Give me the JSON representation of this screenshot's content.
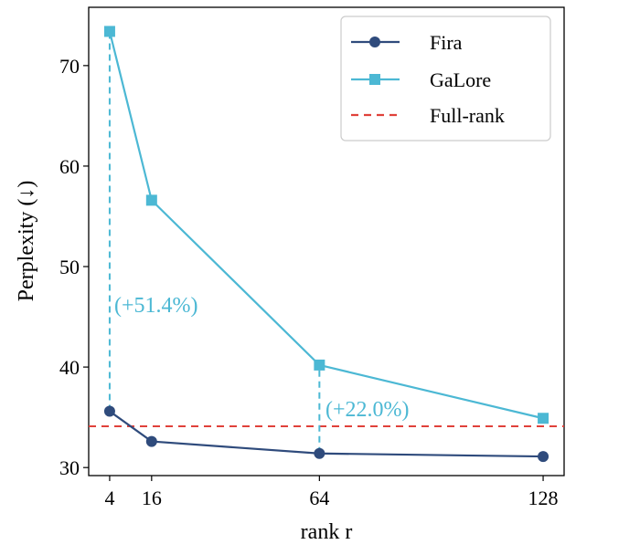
{
  "chart_data": {
    "type": "line",
    "x": [
      4,
      16,
      64,
      128
    ],
    "xticks": [
      "4",
      "16",
      "64",
      "128"
    ],
    "ylim": [
      29.2,
      75.8
    ],
    "xlim": [
      -2,
      134
    ],
    "yticks": [
      30,
      40,
      50,
      60,
      70
    ],
    "xlabel": "rank r",
    "ylabel": "Perplexity (↓)",
    "series": [
      {
        "name": "Fira",
        "values": [
          35.6,
          32.6,
          31.4,
          31.1
        ],
        "color": "#2f4b7c",
        "marker": "circle"
      },
      {
        "name": "GaLore",
        "values": [
          73.4,
          56.6,
          40.2,
          34.9
        ],
        "color": "#4cb8d4",
        "marker": "square"
      }
    ],
    "reference_line": {
      "name": "Full-rank",
      "value": 34.1,
      "color": "#e0413a",
      "style": "dashed"
    },
    "annotations": [
      {
        "text": "(+51.4%)",
        "x": 4,
        "from": 35.6,
        "to": 73.4,
        "color": "#4cb8d4"
      },
      {
        "text": "(+22.0%)",
        "x": 64,
        "from": 31.4,
        "to": 40.2,
        "color": "#4cb8d4"
      }
    ],
    "legend": {
      "position": "top-right",
      "entries": [
        "Fira",
        "GaLore",
        "Full-rank"
      ]
    }
  }
}
